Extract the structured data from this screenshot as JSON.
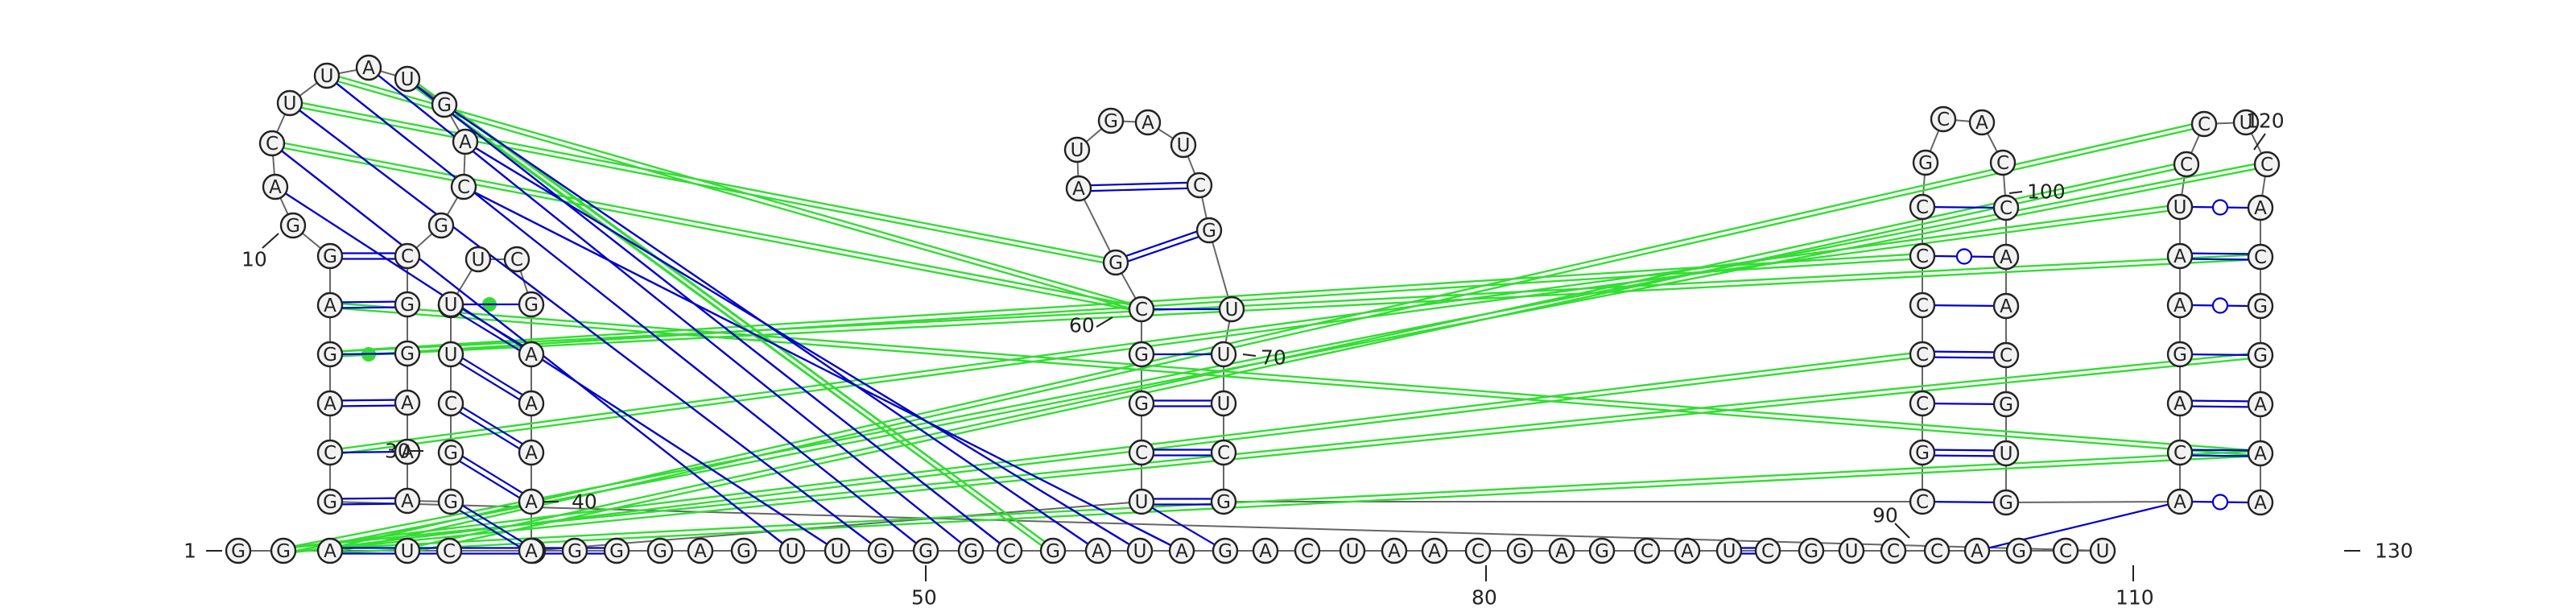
{
  "sequence": "GGAUCCGGGAGUUGGGCGAUAGACUAACGAGCAUCGUCCAGCUGCAGAGGACUUAUGACGCGGAAAGGCUCUUCGAAAAAUCGGCGAUGAUCGUUUCGCGCCCCCGCACCAACGUGACAGAAUCCUCACGGAAACCACU",
  "numbers": [
    "1",
    "10",
    "30",
    "40",
    "50",
    "60",
    "70",
    "80",
    "90",
    "100",
    "110",
    "120",
    "130"
  ],
  "colors": {
    "pair_line": "#0000cc",
    "tertiary_line": "#33dd33",
    "backbone": "#666666",
    "node_fill": "#f2f2f2"
  }
}
